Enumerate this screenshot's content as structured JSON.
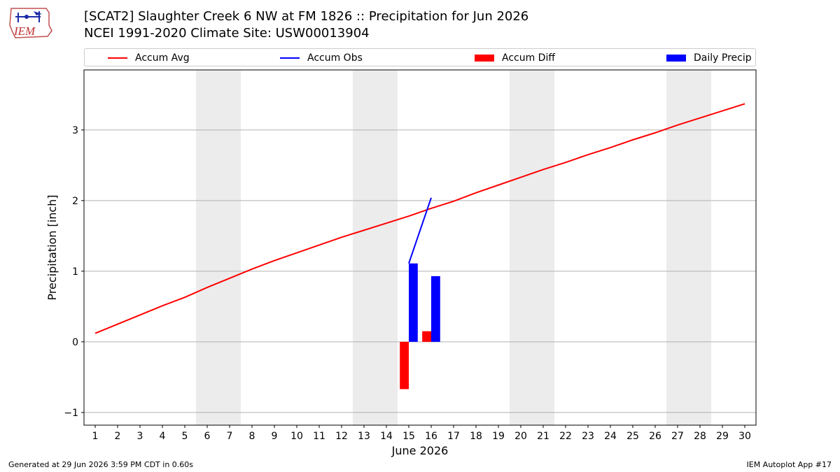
{
  "header": {
    "logo_text": "IEM",
    "title_line1": "[SCAT2] Slaughter Creek 6 NW at FM 1826 :: Precipitation for Jun 2026",
    "title_line2": "NCEI 1991-2020 Climate Site: USW00013904"
  },
  "footer": {
    "left": "Generated at 29 Jun 2026 3:59 PM CDT in 0.60s",
    "right": "IEM Autoplot App #17"
  },
  "colors": {
    "accum_avg": "#ff0000",
    "accum_obs": "#0000ff",
    "accum_diff": "#ff0000",
    "daily_precip": "#0000ff",
    "weekend_shade": "#ececec",
    "grid": "#b0b0b0"
  },
  "chart_data": {
    "type": "bar",
    "xlabel": "June 2026",
    "ylabel": "Precipitation [inch]",
    "ylim": [
      -1.18,
      3.85
    ],
    "xlim": [
      0.5,
      30.5
    ],
    "x_ticks": [
      1,
      2,
      3,
      4,
      5,
      6,
      7,
      8,
      9,
      10,
      11,
      12,
      13,
      14,
      15,
      16,
      17,
      18,
      19,
      20,
      21,
      22,
      23,
      24,
      25,
      26,
      27,
      28,
      29,
      30
    ],
    "y_ticks": [
      -1,
      0,
      1,
      2,
      3
    ],
    "y_tick_labels": [
      "−1",
      "0",
      "1",
      "2",
      "3"
    ],
    "grid": "horizontal",
    "legend_position": "top",
    "legend": [
      {
        "label": "Accum Avg",
        "kind": "line",
        "color": "#ff0000"
      },
      {
        "label": "Accum Obs",
        "kind": "line",
        "color": "#0000ff"
      },
      {
        "label": "Accum Diff",
        "kind": "bar",
        "color": "#ff0000"
      },
      {
        "label": "Daily Precip",
        "kind": "bar",
        "color": "#0000ff"
      }
    ],
    "weekend_shading": [
      [
        5.5,
        7.5
      ],
      [
        12.5,
        14.5
      ],
      [
        19.5,
        21.5
      ],
      [
        26.5,
        28.5
      ]
    ],
    "series": [
      {
        "name": "Accum Avg",
        "kind": "line",
        "color": "#ff0000",
        "x": [
          1,
          2,
          3,
          4,
          5,
          6,
          7,
          8,
          9,
          10,
          11,
          12,
          13,
          14,
          15,
          16,
          17,
          18,
          19,
          20,
          21,
          22,
          23,
          24,
          25,
          26,
          27,
          28,
          29,
          30
        ],
        "values": [
          0.12,
          0.25,
          0.38,
          0.51,
          0.63,
          0.77,
          0.9,
          1.03,
          1.15,
          1.26,
          1.37,
          1.48,
          1.58,
          1.68,
          1.78,
          1.89,
          1.99,
          2.11,
          2.22,
          2.33,
          2.44,
          2.54,
          2.65,
          2.75,
          2.86,
          2.96,
          3.07,
          3.17,
          3.27,
          3.37
        ]
      },
      {
        "name": "Accum Obs",
        "kind": "line",
        "color": "#0000ff",
        "x": [
          15,
          16
        ],
        "values": [
          1.11,
          2.04
        ]
      },
      {
        "name": "Accum Diff",
        "kind": "bar",
        "color": "#ff0000",
        "x": [
          15,
          16
        ],
        "values": [
          -0.67,
          0.15
        ]
      },
      {
        "name": "Daily Precip",
        "kind": "bar",
        "color": "#0000ff",
        "x": [
          15,
          16
        ],
        "values": [
          1.11,
          0.93
        ]
      }
    ]
  }
}
